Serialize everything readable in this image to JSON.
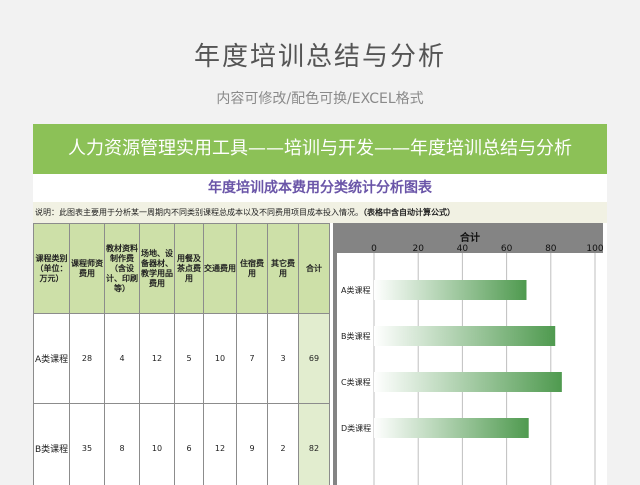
{
  "page": {
    "title": "年度培训总结与分析",
    "subtitle": "内容可修改/配色可换/EXCEL格式"
  },
  "sheet": {
    "banner": "人力资源管理实用工具——培训与开发——年度培训总结与分析",
    "chart_title": "年度培训成本费用分类统计分析图表",
    "note_text": "说明：此图表主要用于分析某一周期内不同类别课程总成本以及不同费用项目成本投入情况。",
    "note_hint": "（表格中含自动计算公式）"
  },
  "table": {
    "headers": [
      "课程类别（单位：万元）",
      "课程师资费用",
      "教材资料制作费（含设计、印刷等）",
      "场地、设备器材、教学用品费用",
      "用餐及茶点费用",
      "交通费用",
      "住宿费用",
      "其它费用",
      "合计"
    ],
    "rows": [
      {
        "label": "A类课程",
        "values": [
          "28",
          "4",
          "12",
          "5",
          "10",
          "7",
          "3"
        ],
        "total": "69"
      },
      {
        "label": "B类课程",
        "values": [
          "35",
          "8",
          "10",
          "6",
          "12",
          "9",
          "2"
        ],
        "total": "82"
      }
    ]
  },
  "chart_data": {
    "type": "bar",
    "orientation": "horizontal",
    "title": "合计",
    "categories": [
      "A类课程",
      "B类课程",
      "C类课程",
      "D类课程"
    ],
    "values": [
      69,
      82,
      85,
      70
    ],
    "xlim": [
      0,
      100
    ],
    "xticks": [
      "0",
      "20",
      "40",
      "60",
      "80",
      "100"
    ],
    "grid": true,
    "colors": {
      "bar_start": "#ffffff",
      "bar_end": "#4f9a4f",
      "grid": "#bfbfbf"
    }
  }
}
